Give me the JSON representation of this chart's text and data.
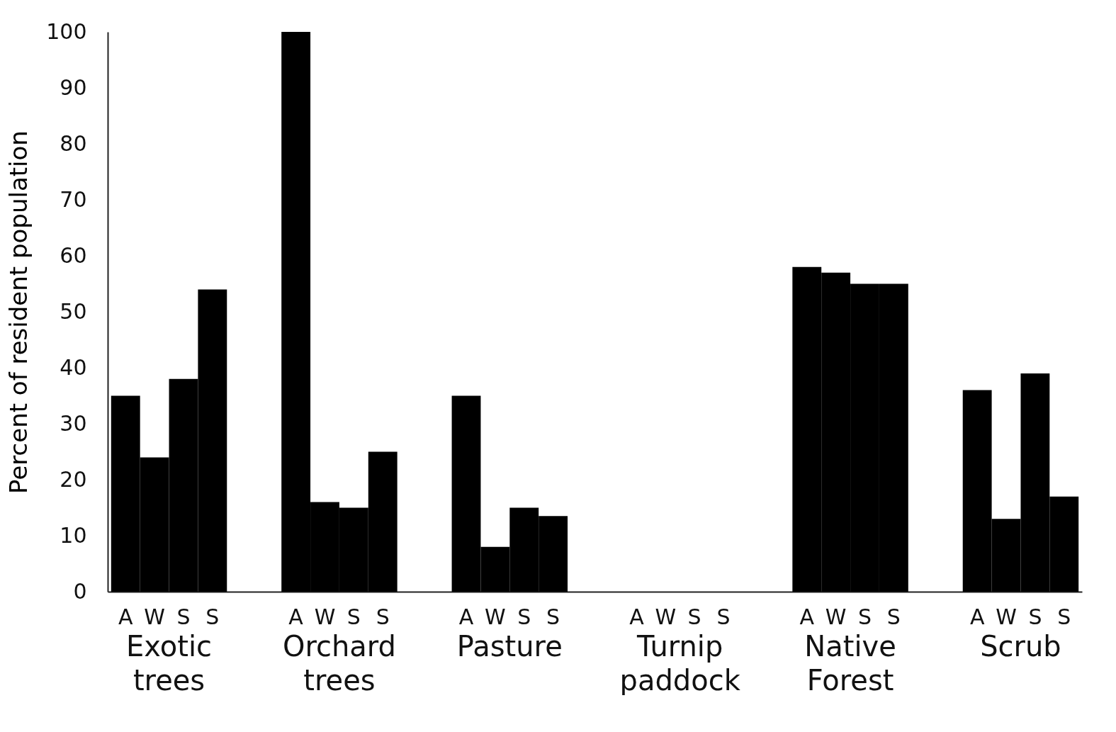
{
  "chart_data": {
    "type": "bar",
    "ylabel": "Percent of resident population",
    "categories": [
      "Exotic trees",
      "Orchard trees",
      "Pasture",
      "Turnip paddock",
      "Native Forest",
      "Scrub"
    ],
    "series": [
      {
        "name": "A",
        "color": "#000000",
        "values": [
          35,
          100,
          35,
          0,
          58,
          36
        ]
      },
      {
        "name": "W",
        "color": "#000000",
        "values": [
          24,
          16,
          8,
          0,
          57,
          13
        ]
      },
      {
        "name": "S",
        "color": "#000000",
        "values": [
          38,
          15,
          15,
          0,
          55,
          39
        ]
      },
      {
        "name": "S",
        "color": "#000000",
        "values": [
          54,
          25,
          13.5,
          0,
          55,
          17
        ]
      }
    ],
    "ylim": [
      0,
      100
    ],
    "yticks": [
      0,
      10,
      20,
      30,
      40,
      50,
      60,
      70,
      80,
      90,
      100
    ],
    "grid": false,
    "legend": false
  }
}
